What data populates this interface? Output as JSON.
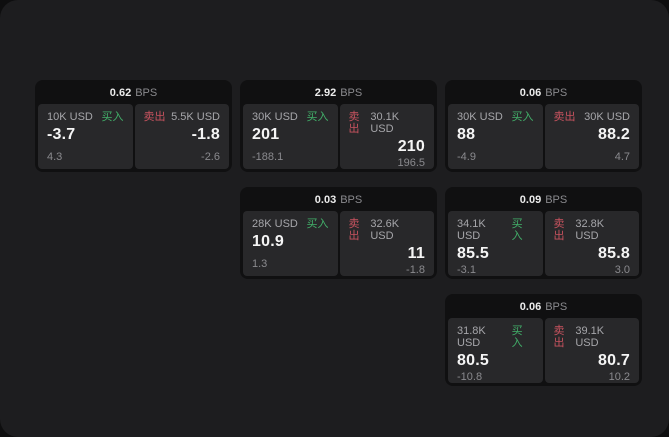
{
  "labels": {
    "buy": "买入",
    "sell": "卖出",
    "bps_unit": "BPS"
  },
  "colors": {
    "buy": "#42b06a",
    "sell": "#c8535f",
    "panel_bg": "#1d1d1f",
    "card_bg": "#101011",
    "subpanel_bg": "#28282a"
  },
  "cards": [
    {
      "bps": "0.62",
      "buy": {
        "size": "10K USD",
        "value": "-3.7",
        "delta": "4.3"
      },
      "sell": {
        "size": "5.5K USD",
        "value": "-1.8",
        "delta": "-2.6"
      }
    },
    {
      "bps": "2.92",
      "buy": {
        "size": "30K USD",
        "value": "201",
        "delta": "-188.1"
      },
      "sell": {
        "size": "30.1K USD",
        "value": "210",
        "delta": "196.5"
      }
    },
    {
      "bps": "0.06",
      "buy": {
        "size": "30K USD",
        "value": "88",
        "delta": "-4.9"
      },
      "sell": {
        "size": "30K USD",
        "value": "88.2",
        "delta": "4.7"
      }
    },
    {
      "bps": "0.03",
      "buy": {
        "size": "28K USD",
        "value": "10.9",
        "delta": "1.3"
      },
      "sell": {
        "size": "32.6K USD",
        "value": "11",
        "delta": "-1.8"
      }
    },
    {
      "bps": "0.09",
      "buy": {
        "size": "34.1K USD",
        "value": "85.5",
        "delta": "-3.1"
      },
      "sell": {
        "size": "32.8K USD",
        "value": "85.8",
        "delta": "3.0"
      }
    },
    {
      "bps": "0.06",
      "buy": {
        "size": "31.8K USD",
        "value": "80.5",
        "delta": "-10.8"
      },
      "sell": {
        "size": "39.1K USD",
        "value": "80.7",
        "delta": "10.2"
      }
    }
  ]
}
